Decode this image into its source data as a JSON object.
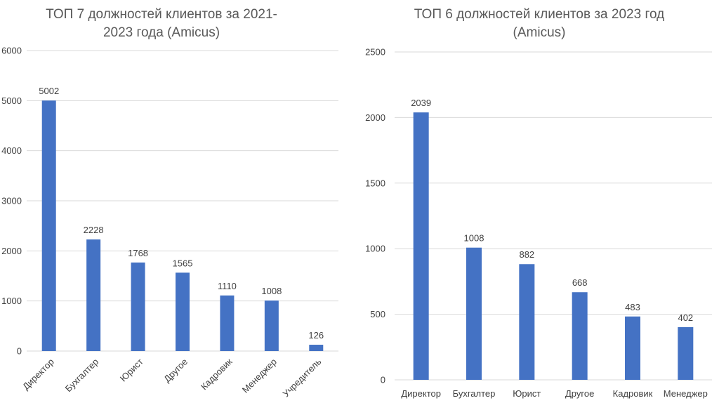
{
  "chart_data": [
    {
      "type": "bar",
      "title_lines": [
        "ТОП 7 должностей клиентов за 2021-",
        "2023 года (Amicus)"
      ],
      "categories": [
        "Директор",
        "Бухгалтер",
        "Юрист",
        "Другое",
        "Кадровик",
        "Менеджер",
        "Учредитель"
      ],
      "values": [
        5002,
        2228,
        1768,
        1565,
        1110,
        1008,
        126
      ],
      "ylim": [
        0,
        6000
      ],
      "yticks": [
        "0",
        "1000",
        "2000",
        "3000",
        "4000",
        "5000",
        "6000"
      ],
      "grid": true,
      "legend": "none",
      "bar_color": "#4472C4"
    },
    {
      "type": "bar",
      "title_lines": [
        "ТОП 6 должностей клиентов за 2023 год",
        "(Amicus)"
      ],
      "categories": [
        "Директор",
        "Бухгалтер",
        "Юрист",
        "Другое",
        "Кадровик",
        "Менеджер"
      ],
      "values": [
        2039,
        1008,
        882,
        668,
        483,
        402
      ],
      "ylim": [
        0,
        2500
      ],
      "yticks": [
        "0",
        "500",
        "1000",
        "1500",
        "2000",
        "2500"
      ],
      "grid": true,
      "legend": "none",
      "bar_color": "#4472C4"
    }
  ]
}
